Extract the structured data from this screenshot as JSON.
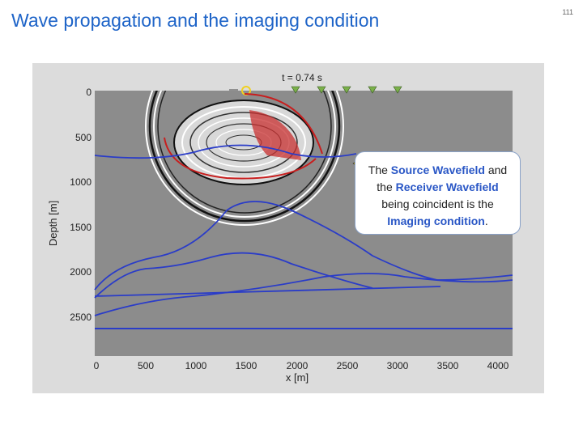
{
  "slide": {
    "title": "Wave propagation and the imaging condition",
    "page_number": "111"
  },
  "figure": {
    "time_label": "t = 0.74 s",
    "ylabel": "Depth [m]",
    "xlabel": "x [m]",
    "x_ticks": [
      "0",
      "500",
      "1000",
      "1500",
      "2000",
      "2500",
      "3000",
      "3500",
      "4000"
    ],
    "y_ticks": [
      "0",
      "500",
      "1000",
      "1500",
      "2000",
      "2500"
    ],
    "colors": {
      "background": "#8c8c8c",
      "interfaces": "#2a3cc8",
      "source_wavefield": "#c81e1e",
      "receiver_marker": "#7ab04a",
      "source_marker": "#f0d020"
    }
  },
  "callout": {
    "part1": "The ",
    "source": "Source Wavefield",
    "part2": " and the ",
    "receiver": "Receiver Wavefield",
    "part3": " being coincident is the ",
    "imaging": "Imaging condition",
    "part4": "."
  }
}
